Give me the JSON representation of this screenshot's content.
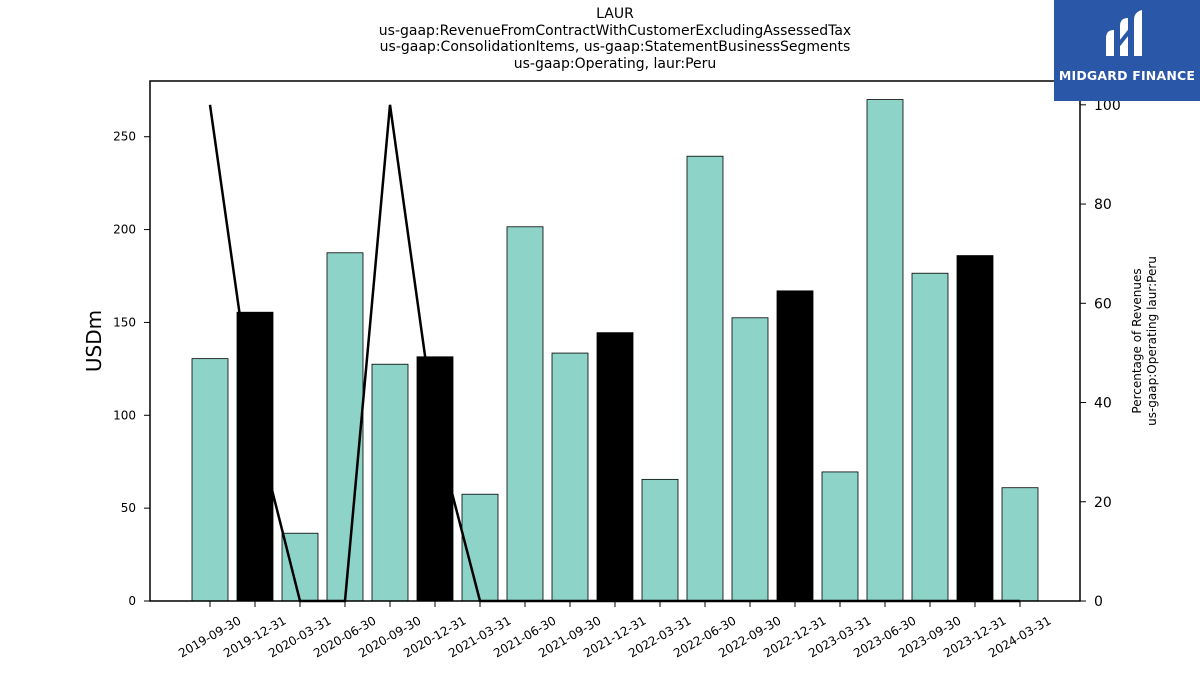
{
  "title_lines": [
    "LAUR",
    "us-gaap:RevenueFromContractWithCustomerExcludingAssessedTax",
    "us-gaap:ConsolidationItems, us-gaap:StatementBusinessSegments",
    "us-gaap:Operating, laur:Peru"
  ],
  "logo": {
    "text": "MIDGARD FINANCE",
    "bg_color": "#2b57a8",
    "icon": "midgard-logo-icon"
  },
  "chart_data": {
    "type": "bar",
    "categories": [
      "2019-09-30",
      "2019-12-31",
      "2020-03-31",
      "2020-06-30",
      "2020-09-30",
      "2020-12-31",
      "2021-03-31",
      "2021-06-30",
      "2021-09-30",
      "2021-12-31",
      "2022-03-31",
      "2022-06-30",
      "2022-09-30",
      "2022-12-31",
      "2023-03-31",
      "2023-06-30",
      "2023-09-30",
      "2023-12-31",
      "2024-03-31"
    ],
    "values": [
      130.5,
      155.5,
      36.5,
      187.5,
      127.5,
      131.5,
      57.5,
      201.5,
      133.5,
      144.5,
      65.5,
      239.5,
      152.5,
      167.0,
      69.5,
      270.0,
      176.5,
      186.0,
      61.0
    ],
    "bar_colors": [
      "#8dd3c7",
      "#000000",
      "#8dd3c7",
      "#8dd3c7",
      "#8dd3c7",
      "#000000",
      "#8dd3c7",
      "#8dd3c7",
      "#8dd3c7",
      "#000000",
      "#8dd3c7",
      "#8dd3c7",
      "#8dd3c7",
      "#000000",
      "#8dd3c7",
      "#8dd3c7",
      "#8dd3c7",
      "#000000",
      "#8dd3c7"
    ],
    "ylabel": "USDm",
    "ylim": [
      0,
      280
    ],
    "yticks": [
      0,
      50,
      100,
      150,
      200,
      250
    ],
    "secondary": {
      "type": "line",
      "values": [
        100,
        36,
        0,
        0,
        100,
        35,
        0,
        0,
        0,
        0,
        0,
        0,
        0,
        0,
        0,
        0,
        0,
        0,
        0
      ],
      "ylabel_lines": [
        "Percentage of Revenues",
        "us-gaap:Operating laur:Peru"
      ],
      "ylim": [
        0,
        104.8
      ],
      "yticks": [
        0,
        20,
        40,
        60,
        80,
        100
      ],
      "color": "#000000"
    },
    "grid": false
  }
}
